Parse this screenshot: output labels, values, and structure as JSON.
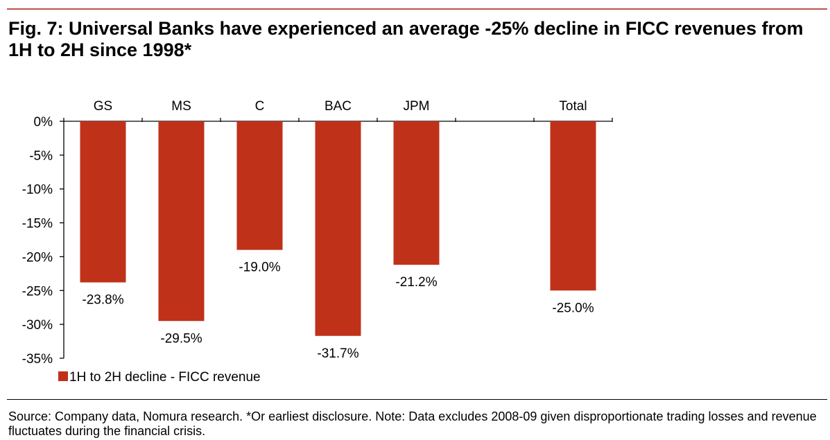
{
  "figure": {
    "title": "Fig. 7: Universal Banks have experienced an average -25% decline in FICC revenues from 1H to 2H since 1998*",
    "footnote": "Source: Company data, Nomura research. *Or earliest disclosure. Note: Data excludes 2008-09 given disproportionate trading losses and revenue fluctuates during the financial crisis."
  },
  "colors": {
    "accent_rule": "#c0504d",
    "bar": "#c0311a"
  },
  "chart_data": {
    "type": "bar",
    "categories": [
      "GS",
      "MS",
      "C",
      "BAC",
      "JPM",
      "",
      "Total"
    ],
    "series": [
      {
        "name": "1H to 2H decline - FICC revenue",
        "values": [
          -23.8,
          -29.5,
          -19.0,
          -31.7,
          -21.2,
          null,
          -25.0
        ],
        "labels": [
          "-23.8%",
          "-29.5%",
          "-19.0%",
          "-31.7%",
          "-21.2%",
          "",
          "-25.0%"
        ]
      }
    ],
    "ylim": [
      -35,
      0
    ],
    "yticks": [
      0,
      -5,
      -10,
      -15,
      -20,
      -25,
      -30,
      -35
    ],
    "ytick_labels": [
      "0%",
      "-5%",
      "-10%",
      "-15%",
      "-20%",
      "-25%",
      "-30%",
      "-35%"
    ],
    "category_axis_position": "top",
    "legend": "bottom-left",
    "grid": false
  }
}
